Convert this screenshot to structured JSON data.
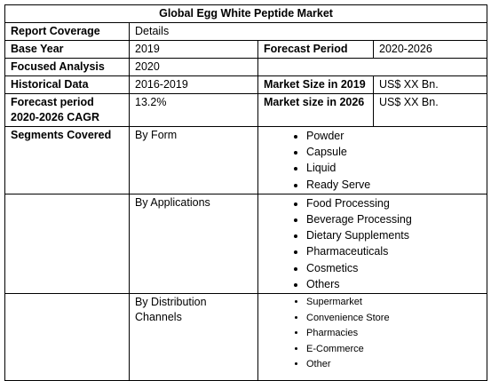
{
  "table": {
    "title": "Global Egg White Peptide Market",
    "rows": [
      [
        "Report Coverage",
        "Details"
      ],
      [
        "Base Year",
        "2019",
        "Forecast Period",
        "2020-2026"
      ],
      [
        "Focused Analysis",
        "2020"
      ],
      [
        "Historical Data",
        "2016-2019",
        "Market Size in 2019",
        "US$ XX Bn."
      ],
      [
        "Forecast period 2020-2026 CAGR",
        "13.2%",
        "Market size in 2026",
        "US$ XX Bn."
      ]
    ],
    "segments_label": "Segments Covered",
    "segments": [
      {
        "label": "By Form",
        "items": [
          "Powder",
          "Capsule",
          "Liquid",
          "Ready Serve"
        ]
      },
      {
        "label": "By Applications",
        "items": [
          "Food Processing",
          "Beverage Processing",
          "Dietary Supplements",
          "Pharmaceuticals",
          "Cosmetics",
          "Others"
        ]
      },
      {
        "label": "By Distribution Channels",
        "items": [
          "Supermarket",
          "Convenience Store",
          "Pharmacies",
          "E-Commerce",
          "Other"
        ]
      }
    ]
  }
}
